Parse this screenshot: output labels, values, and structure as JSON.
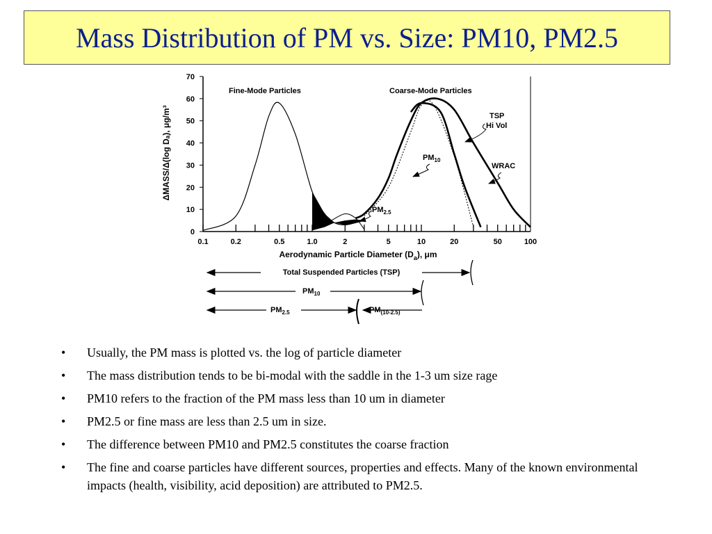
{
  "slide": {
    "title": "Mass Distribution of PM vs. Size: PM10, PM2.5",
    "bullets": [
      "Usually, the PM mass is plotted vs. the log of particle diameter",
      "The mass distribution tends to be bi-modal with the saddle in the 1-3 um size rage",
      "PM10 refers to the fraction of the PM mass less than 10 um in diameter",
      "PM2.5 or fine mass are less than 2.5 um in size.",
      "The difference between PM10 and PM2.5 constitutes the coarse fraction",
      "The fine and coarse particles have different sources, properties and effects. Many of the known environmental impacts (health, visibility, acid deposition) are attributed to PM2.5."
    ],
    "bullet_glyph": "•",
    "title_color": "#0b1f8f",
    "title_bg": "#ffff99"
  },
  "chart_data": {
    "type": "line",
    "x_scale": "log",
    "xlim": [
      0.1,
      100
    ],
    "ylim": [
      0,
      70
    ],
    "x_ticks": [
      "0.1",
      "0.2",
      "0.5",
      "1.0",
      "2",
      "5",
      "10",
      "20",
      "50",
      "100"
    ],
    "y_ticks": [
      "0",
      "10",
      "20",
      "30",
      "40",
      "50",
      "60",
      "70"
    ],
    "xlabel_main": "Aerodynamic Particle Diameter (D",
    "xlabel_sub": "a",
    "xlabel_tail": "), μm",
    "ylabel": "ΔMASS/Δ(log Dₐ), μg/m³",
    "series": [
      {
        "name": "",
        "x": [
          0.1,
          0.2,
          0.3,
          0.4,
          0.5,
          0.7,
          1.0,
          1.3,
          1.6,
          2.0,
          2.5,
          3.0
        ],
        "values": [
          0.5,
          7,
          30,
          52,
          58,
          44,
          18,
          8,
          4,
          3,
          4,
          5
        ]
      },
      {
        "name": "TSP",
        "x": [
          2.5,
          3,
          4,
          5,
          6,
          8,
          10,
          14,
          20,
          30,
          50,
          70,
          100
        ],
        "values": [
          6,
          8,
          15,
          24,
          35,
          50,
          58,
          60,
          55,
          40,
          22,
          10,
          2
        ]
      },
      {
        "name": "PM10",
        "x": [
          3,
          5,
          8,
          10,
          13,
          20,
          30
        ],
        "values": [
          7,
          20,
          45,
          57,
          57,
          34,
          2
        ]
      },
      {
        "name": "WRAC",
        "x": [
          8,
          10,
          15,
          20,
          25,
          35
        ],
        "values": [
          54,
          58,
          54,
          35,
          20,
          2
        ]
      },
      {
        "name": "PM2.5",
        "x": [
          1.5,
          2.0,
          2.5,
          3.0
        ],
        "values": [
          5,
          8,
          6,
          1
        ]
      }
    ],
    "annotations": {
      "fine_mode": "Fine-Mode Particles",
      "coarse_mode": "Coarse-Mode Particles",
      "tsp": "TSP",
      "hivol": "Hi Vol",
      "pm10_main": "PM",
      "pm10_sub": "10",
      "wrac": "WRAC",
      "pm25_main": "PM",
      "pm25_sub": "2.5"
    },
    "ranges": {
      "tsp_label": "Total Suspended Particles (TSP)",
      "pm10_main": "PM",
      "pm10_sub": "10",
      "pm25_main": "PM",
      "pm25_sub": "2.5",
      "coarse_main": "PM",
      "coarse_sub": "(10-2.5)"
    }
  }
}
